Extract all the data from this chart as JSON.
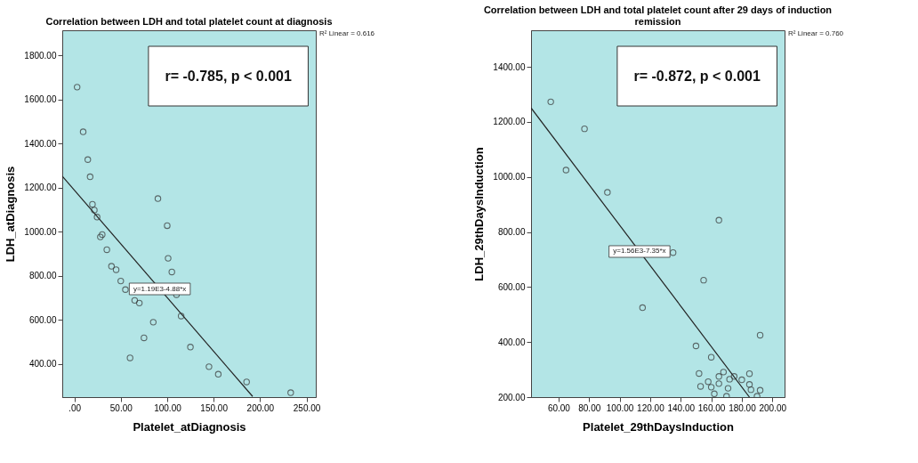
{
  "chart_data": [
    {
      "type": "scatter",
      "title": "Correlation between LDH and total platelet count at diagnosis",
      "xlabel": "Platelet_atDiagnosis",
      "ylabel": "LDH_atDiagnosis",
      "xlim": [
        -13,
        260
      ],
      "ylim": [
        250,
        1915
      ],
      "xticks": [
        {
          "value": 0,
          "label": ".00"
        },
        {
          "value": 50,
          "label": "50.00"
        },
        {
          "value": 100,
          "label": "100.00"
        },
        {
          "value": 150,
          "label": "150.00"
        },
        {
          "value": 200,
          "label": "200.00"
        },
        {
          "value": 250,
          "label": "250.00"
        }
      ],
      "yticks": [
        {
          "value": 400,
          "label": "400.00"
        },
        {
          "value": 600,
          "label": "600.00"
        },
        {
          "value": 800,
          "label": "800.00"
        },
        {
          "value": 1000,
          "label": "1000.00"
        },
        {
          "value": 1200,
          "label": "1200.00"
        },
        {
          "value": 1400,
          "label": "1400.00"
        },
        {
          "value": 1600,
          "label": "1600.00"
        },
        {
          "value": 1800,
          "label": "1800.00"
        }
      ],
      "marker": "circle",
      "grid": false,
      "series": [
        {
          "color": "#333333",
          "x": [
            3,
            9.5,
            14.5,
            17,
            19.5,
            21.5,
            24.5,
            28,
            30,
            35,
            40,
            45,
            50,
            55,
            65,
            70,
            60,
            75,
            85,
            90,
            100,
            101,
            105,
            110,
            115,
            125,
            145,
            155,
            185.5,
            233
          ],
          "values": [
            1657,
            1454,
            1328,
            1250,
            1125,
            1099,
            1067,
            977,
            988,
            919,
            844,
            828,
            777,
            738,
            689,
            677,
            428,
            519,
            590,
            1151,
            1028,
            880,
            818,
            715,
            618,
            477,
            388,
            354,
            319,
            270
          ]
        },
        {
          "type": "line",
          "marker": "none",
          "color": "#222222",
          "x": [
            -13,
            192
          ],
          "values": [
            1253,
            253
          ]
        }
      ],
      "annotations": [
        "r= -0.785, p < 0.001",
        {
          "text": "y=1.19E3-4.88*x",
          "x": 92,
          "y": 741
        },
        "R² Linear = 0.616"
      ]
    },
    {
      "type": "scatter",
      "title": "Correlation between LDH and total platelet count after 29 days of induction remission",
      "xlabel": "Platelet_29thDaysInduction",
      "ylabel": "LDH_29thDaysInduction",
      "xlim": [
        42,
        208
      ],
      "ylim": [
        200,
        1533
      ],
      "xticks": [
        {
          "value": 60,
          "label": "60.00"
        },
        {
          "value": 80,
          "label": "80.00"
        },
        {
          "value": 100,
          "label": "100.00"
        },
        {
          "value": 120,
          "label": "120.00"
        },
        {
          "value": 140,
          "label": "140.00"
        },
        {
          "value": 160,
          "label": "160.00"
        },
        {
          "value": 180,
          "label": "180.00"
        },
        {
          "value": 200,
          "label": "200.00"
        }
      ],
      "yticks": [
        {
          "value": 200,
          "label": "200.00"
        },
        {
          "value": 400,
          "label": "400.00"
        },
        {
          "value": 600,
          "label": "600.00"
        },
        {
          "value": 800,
          "label": "800.00"
        },
        {
          "value": 1000,
          "label": "1000.00"
        },
        {
          "value": 1200,
          "label": "1200.00"
        },
        {
          "value": 1400,
          "label": "1400.00"
        }
      ],
      "marker": "circle",
      "grid": false,
      "series": [
        {
          "color": "#333333",
          "x": [
            54.9,
            64.9,
            77,
            92,
            115,
            135,
            165,
            155,
            192,
            150,
            160,
            152,
            153,
            158,
            160,
            162,
            165,
            165,
            168,
            171,
            172,
            170,
            175,
            180,
            185,
            185,
            186,
            190,
            192
          ],
          "values": [
            1273,
            1025,
            1175,
            944,
            525,
            725,
            843,
            625,
            425,
            386,
            345,
            286,
            239,
            256,
            236,
            212,
            275,
            249,
            291,
            232,
            265,
            203,
            275,
            263,
            285,
            246,
            227,
            203,
            225
          ]
        },
        {
          "type": "line",
          "marker": "none",
          "color": "#222222",
          "x": [
            42,
            185
          ],
          "values": [
            1251,
            200
          ]
        }
      ],
      "annotations": [
        "r= -0.872, p < 0.001",
        {
          "text": "y=1.56E3-7.35*x",
          "x": 113,
          "y": 729
        },
        "R² Linear = 0.760"
      ]
    }
  ]
}
